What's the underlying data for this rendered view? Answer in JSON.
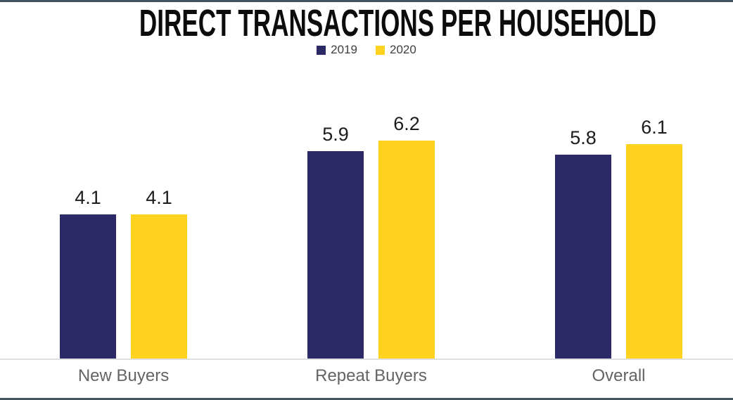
{
  "page": {
    "title": "DIRECT TRANSACTIONS PER HOUSEHOLD"
  },
  "chart_data": {
    "type": "bar",
    "title": "DIRECT TRANSACTIONS PER HOUSEHOLD",
    "categories": [
      "New Buyers",
      "Repeat Buyers",
      "Overall"
    ],
    "series": [
      {
        "name": "2019",
        "color": "#2b2a66",
        "values": [
          4.1,
          5.9,
          5.8
        ]
      },
      {
        "name": "2020",
        "color": "#ffd21f",
        "values": [
          4.1,
          6.2,
          6.1
        ]
      }
    ],
    "data_labels": {
      "2019": [
        "4.1",
        "5.9",
        "5.8"
      ],
      "2020": [
        "4.1",
        "6.2",
        "6.1"
      ]
    },
    "xlabel": "",
    "ylabel": "",
    "ylim": [
      0,
      7
    ],
    "grid": false,
    "legend_position": "top",
    "axis_line_color": "#e0e0e0",
    "accent_border_color": "#44545e"
  }
}
